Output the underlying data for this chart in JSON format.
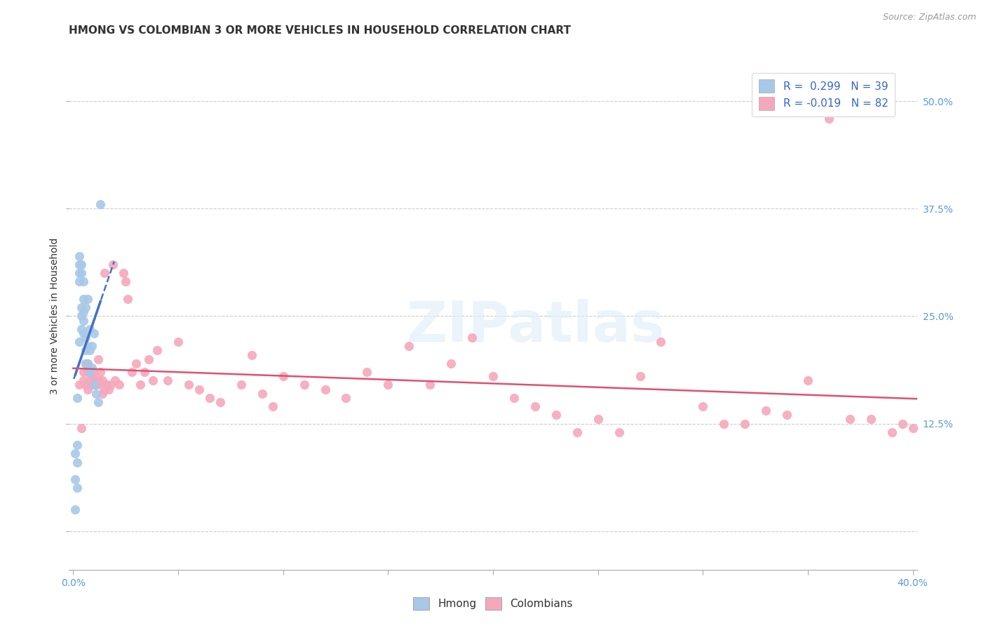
{
  "title": "HMONG VS COLOMBIAN 3 OR MORE VEHICLES IN HOUSEHOLD CORRELATION CHART",
  "source": "Source: ZipAtlas.com",
  "ylabel": "3 or more Vehicles in Household",
  "hmong_R": 0.299,
  "hmong_N": 39,
  "colombian_R": -0.019,
  "colombian_N": 82,
  "hmong_color": "#a8c8e8",
  "colombian_color": "#f5a8bc",
  "hmong_line_color": "#4472c4",
  "colombian_line_color": "#e05070",
  "background_color": "#ffffff",
  "xmin": -0.002,
  "xmax": 0.402,
  "ymin": -0.045,
  "ymax": 0.545,
  "hmong_x": [
    0.001,
    0.001,
    0.001,
    0.002,
    0.002,
    0.002,
    0.002,
    0.003,
    0.003,
    0.003,
    0.003,
    0.003,
    0.004,
    0.004,
    0.004,
    0.004,
    0.004,
    0.005,
    0.005,
    0.005,
    0.005,
    0.005,
    0.006,
    0.006,
    0.006,
    0.006,
    0.007,
    0.007,
    0.007,
    0.008,
    0.008,
    0.008,
    0.009,
    0.009,
    0.01,
    0.01,
    0.011,
    0.012,
    0.013
  ],
  "hmong_y": [
    0.025,
    0.06,
    0.09,
    0.05,
    0.08,
    0.1,
    0.155,
    0.22,
    0.29,
    0.3,
    0.31,
    0.32,
    0.235,
    0.25,
    0.26,
    0.3,
    0.31,
    0.23,
    0.245,
    0.255,
    0.27,
    0.29,
    0.195,
    0.21,
    0.225,
    0.26,
    0.195,
    0.215,
    0.27,
    0.185,
    0.21,
    0.235,
    0.19,
    0.215,
    0.17,
    0.23,
    0.16,
    0.15,
    0.38
  ],
  "colombian_x": [
    0.003,
    0.004,
    0.005,
    0.005,
    0.006,
    0.006,
    0.007,
    0.007,
    0.007,
    0.008,
    0.008,
    0.009,
    0.009,
    0.01,
    0.01,
    0.011,
    0.011,
    0.012,
    0.012,
    0.013,
    0.013,
    0.014,
    0.014,
    0.015,
    0.015,
    0.016,
    0.017,
    0.018,
    0.019,
    0.02,
    0.022,
    0.024,
    0.025,
    0.026,
    0.028,
    0.03,
    0.032,
    0.034,
    0.036,
    0.038,
    0.04,
    0.045,
    0.05,
    0.055,
    0.06,
    0.065,
    0.07,
    0.08,
    0.085,
    0.09,
    0.095,
    0.1,
    0.11,
    0.12,
    0.13,
    0.14,
    0.15,
    0.16,
    0.17,
    0.18,
    0.19,
    0.2,
    0.21,
    0.22,
    0.23,
    0.24,
    0.25,
    0.26,
    0.27,
    0.28,
    0.3,
    0.31,
    0.32,
    0.33,
    0.34,
    0.35,
    0.36,
    0.37,
    0.38,
    0.39,
    0.395,
    0.4
  ],
  "colombian_y": [
    0.17,
    0.12,
    0.175,
    0.185,
    0.17,
    0.195,
    0.165,
    0.185,
    0.195,
    0.175,
    0.185,
    0.17,
    0.18,
    0.175,
    0.185,
    0.17,
    0.175,
    0.175,
    0.2,
    0.17,
    0.185,
    0.16,
    0.175,
    0.165,
    0.3,
    0.17,
    0.165,
    0.17,
    0.31,
    0.175,
    0.17,
    0.3,
    0.29,
    0.27,
    0.185,
    0.195,
    0.17,
    0.185,
    0.2,
    0.175,
    0.21,
    0.175,
    0.22,
    0.17,
    0.165,
    0.155,
    0.15,
    0.17,
    0.205,
    0.16,
    0.145,
    0.18,
    0.17,
    0.165,
    0.155,
    0.185,
    0.17,
    0.215,
    0.17,
    0.195,
    0.225,
    0.18,
    0.155,
    0.145,
    0.135,
    0.115,
    0.13,
    0.115,
    0.18,
    0.22,
    0.145,
    0.125,
    0.125,
    0.14,
    0.135,
    0.175,
    0.48,
    0.13,
    0.13,
    0.115,
    0.125,
    0.12
  ],
  "xtick_positions": [
    0.0,
    0.05,
    0.1,
    0.15,
    0.2,
    0.25,
    0.3,
    0.35,
    0.4
  ],
  "ytick_positions": [
    0.0,
    0.125,
    0.25,
    0.375,
    0.5
  ],
  "ytick_labels": [
    "",
    "12.5%",
    "25.0%",
    "37.5%",
    "50.0%"
  ]
}
